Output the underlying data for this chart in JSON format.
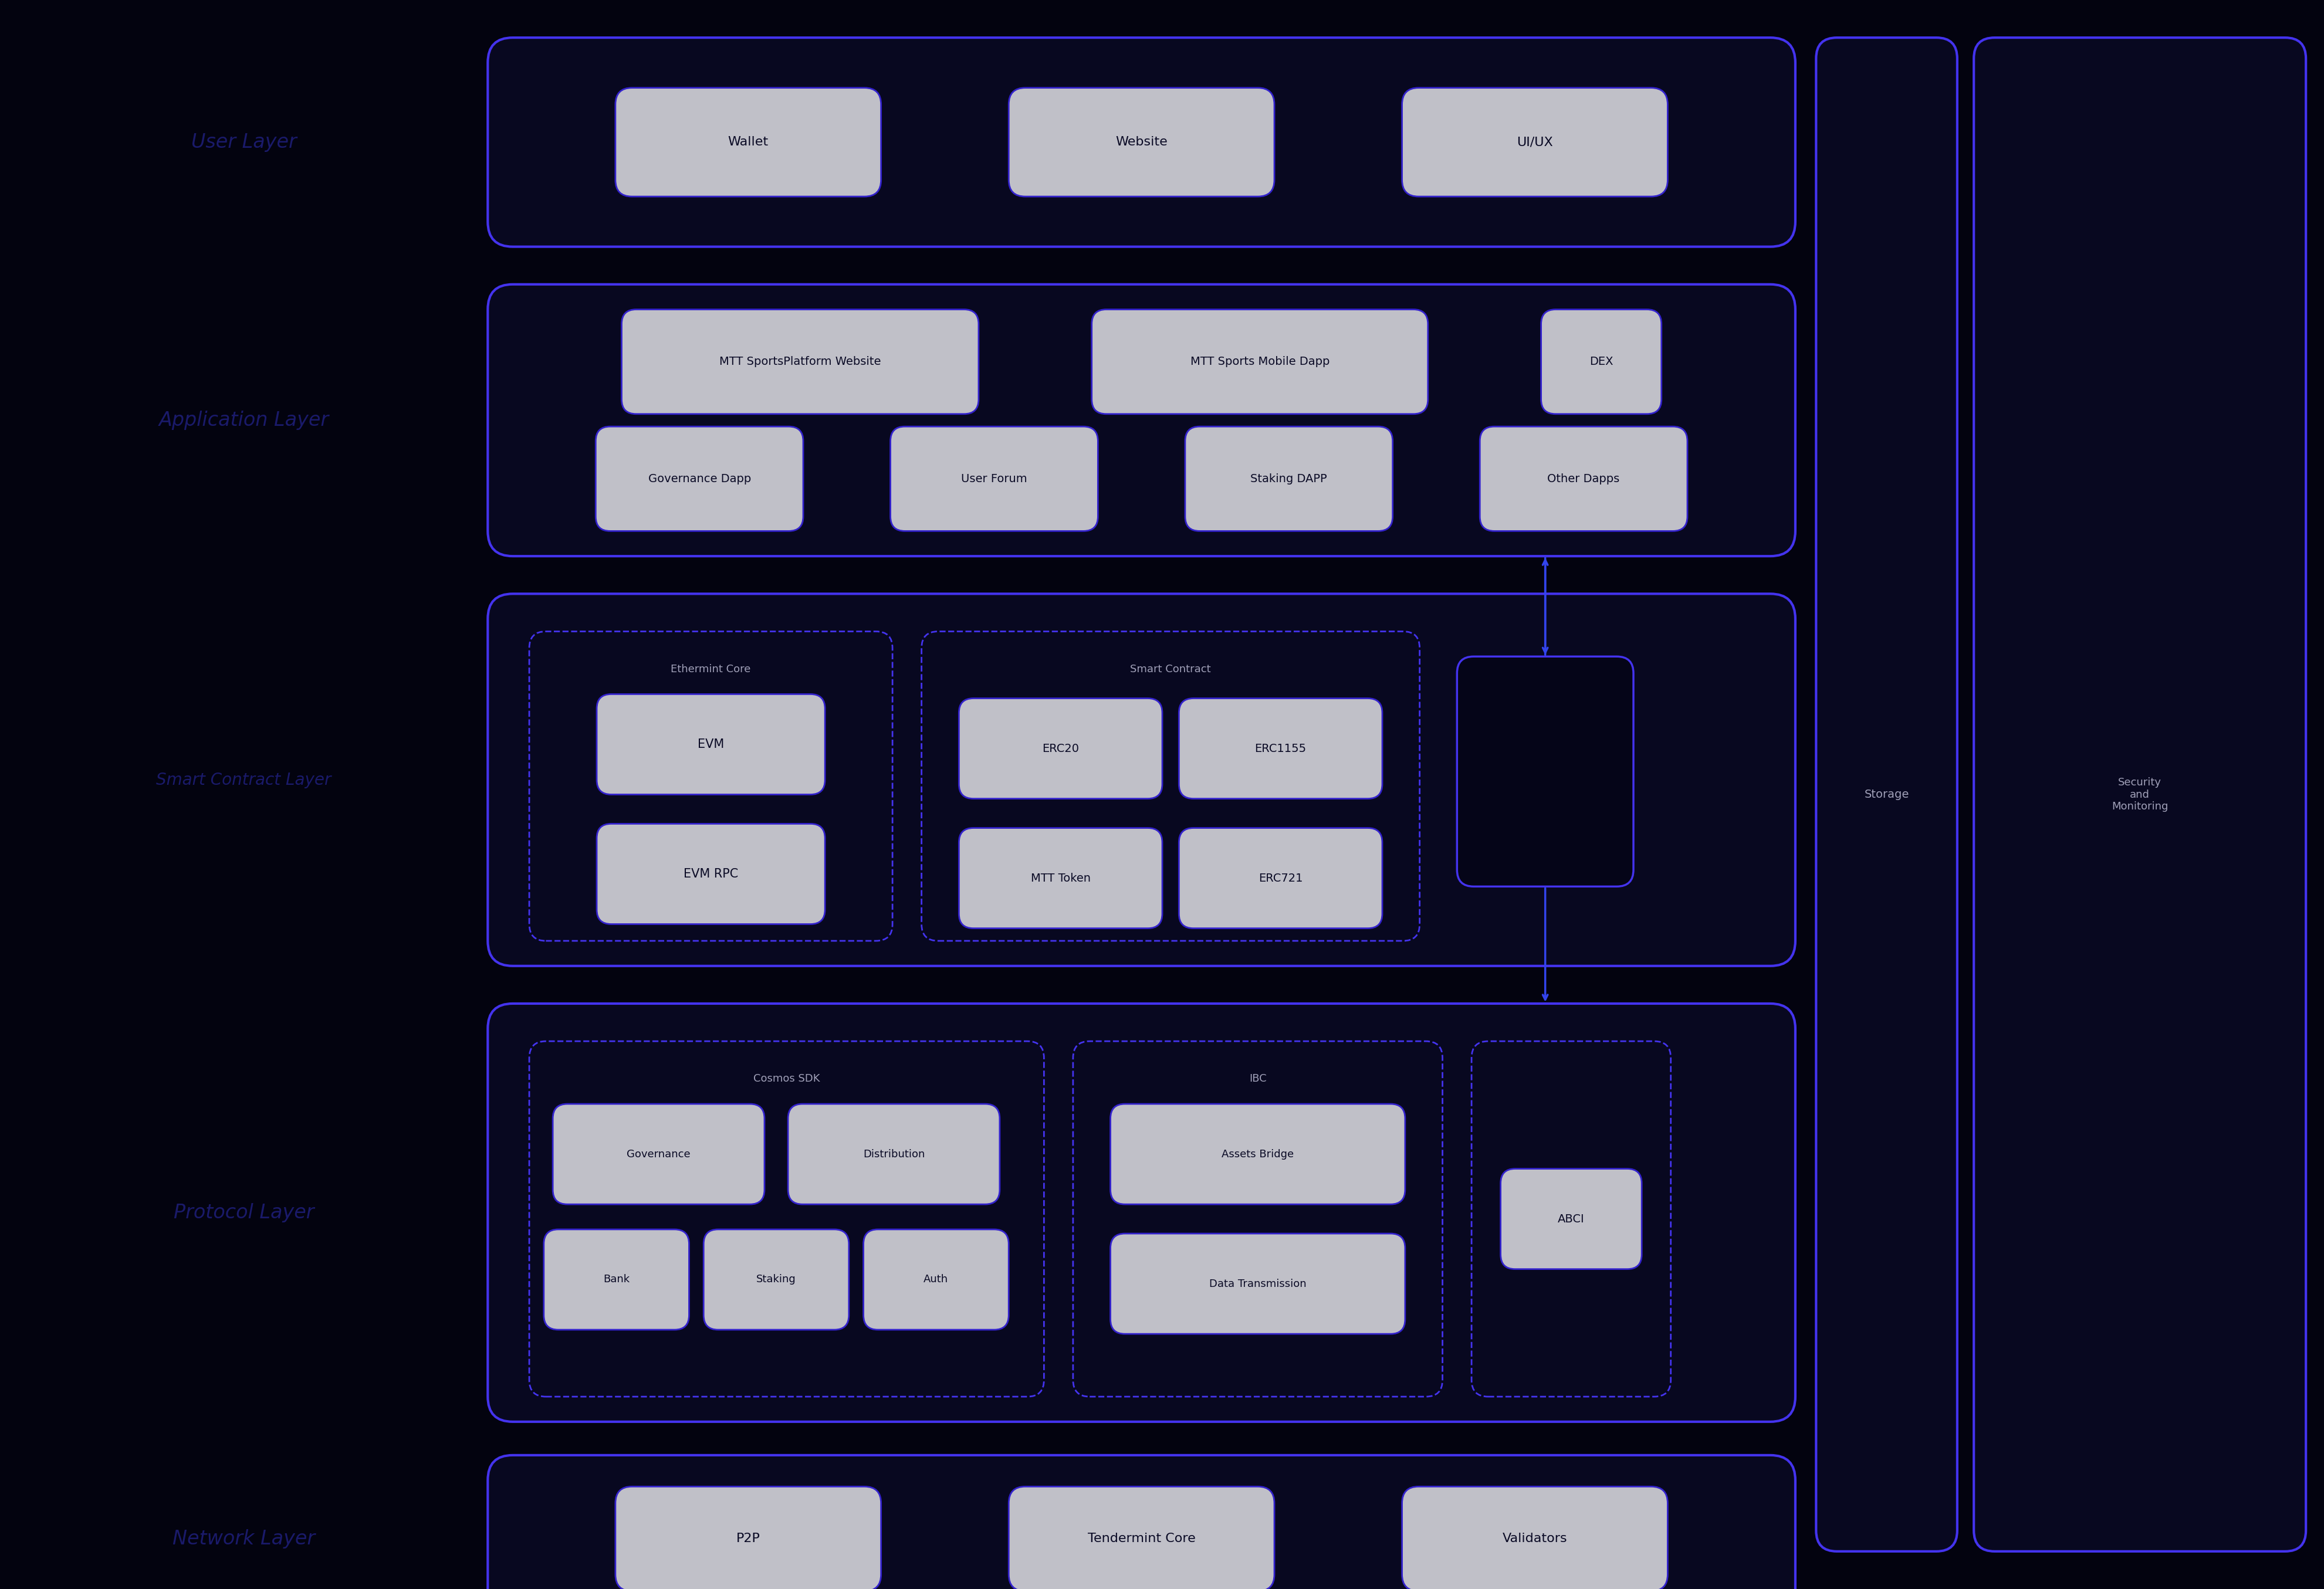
{
  "bg_color": "#03030f",
  "border_color": "#4433ee",
  "box_bg": "#080820",
  "inner_box_bg": "#c0c0c8",
  "inner_box_border": "#3322cc",
  "dashed_border_color": "#4433ee",
  "text_color_light": "#a0a0b8",
  "text_color_layer": "#1a1a6a",
  "text_color_inner": "#0a0a25",
  "arrow_color": "#3344ee",
  "side_storage": "Storage",
  "side_security": "Security\nand\nMonitoring",
  "user_layer_boxes": [
    "Wallet",
    "Website",
    "UI/UX"
  ],
  "app_layer_row1": [
    "MTT SportsPlatform Website",
    "MTT Sports Mobile Dapp",
    "DEX"
  ],
  "app_layer_row2": [
    "Governance Dapp",
    "User Forum",
    "Staking DAPP",
    "Other Dapps"
  ],
  "sc_ethermint_label": "Ethermint Core",
  "sc_ethermint_boxes": [
    "EVM",
    "EVM RPC"
  ],
  "sc_smart_label": "Smart Contract",
  "sc_smart_boxes_row1": [
    "ERC20",
    "ERC1155"
  ],
  "sc_smart_boxes_row2": [
    "MTT Token",
    "ERC721"
  ],
  "proto_cosmos_label": "Cosmos SDK",
  "proto_cosmos_row1": [
    "Governance",
    "Distribution"
  ],
  "proto_cosmos_row2": [
    "Bank",
    "Staking",
    "Auth"
  ],
  "proto_ibc_label": "IBC",
  "proto_ibc_boxes": [
    "Assets Bridge",
    "Data Transmission"
  ],
  "proto_abci_label": "ABCI",
  "network_boxes": [
    "P2P",
    "Tendermint Core",
    "Validators"
  ],
  "layer_labels": [
    "User Layer",
    "Application Layer",
    "Smart Contract Layer",
    "Protocol Layer",
    "Network Layer"
  ]
}
